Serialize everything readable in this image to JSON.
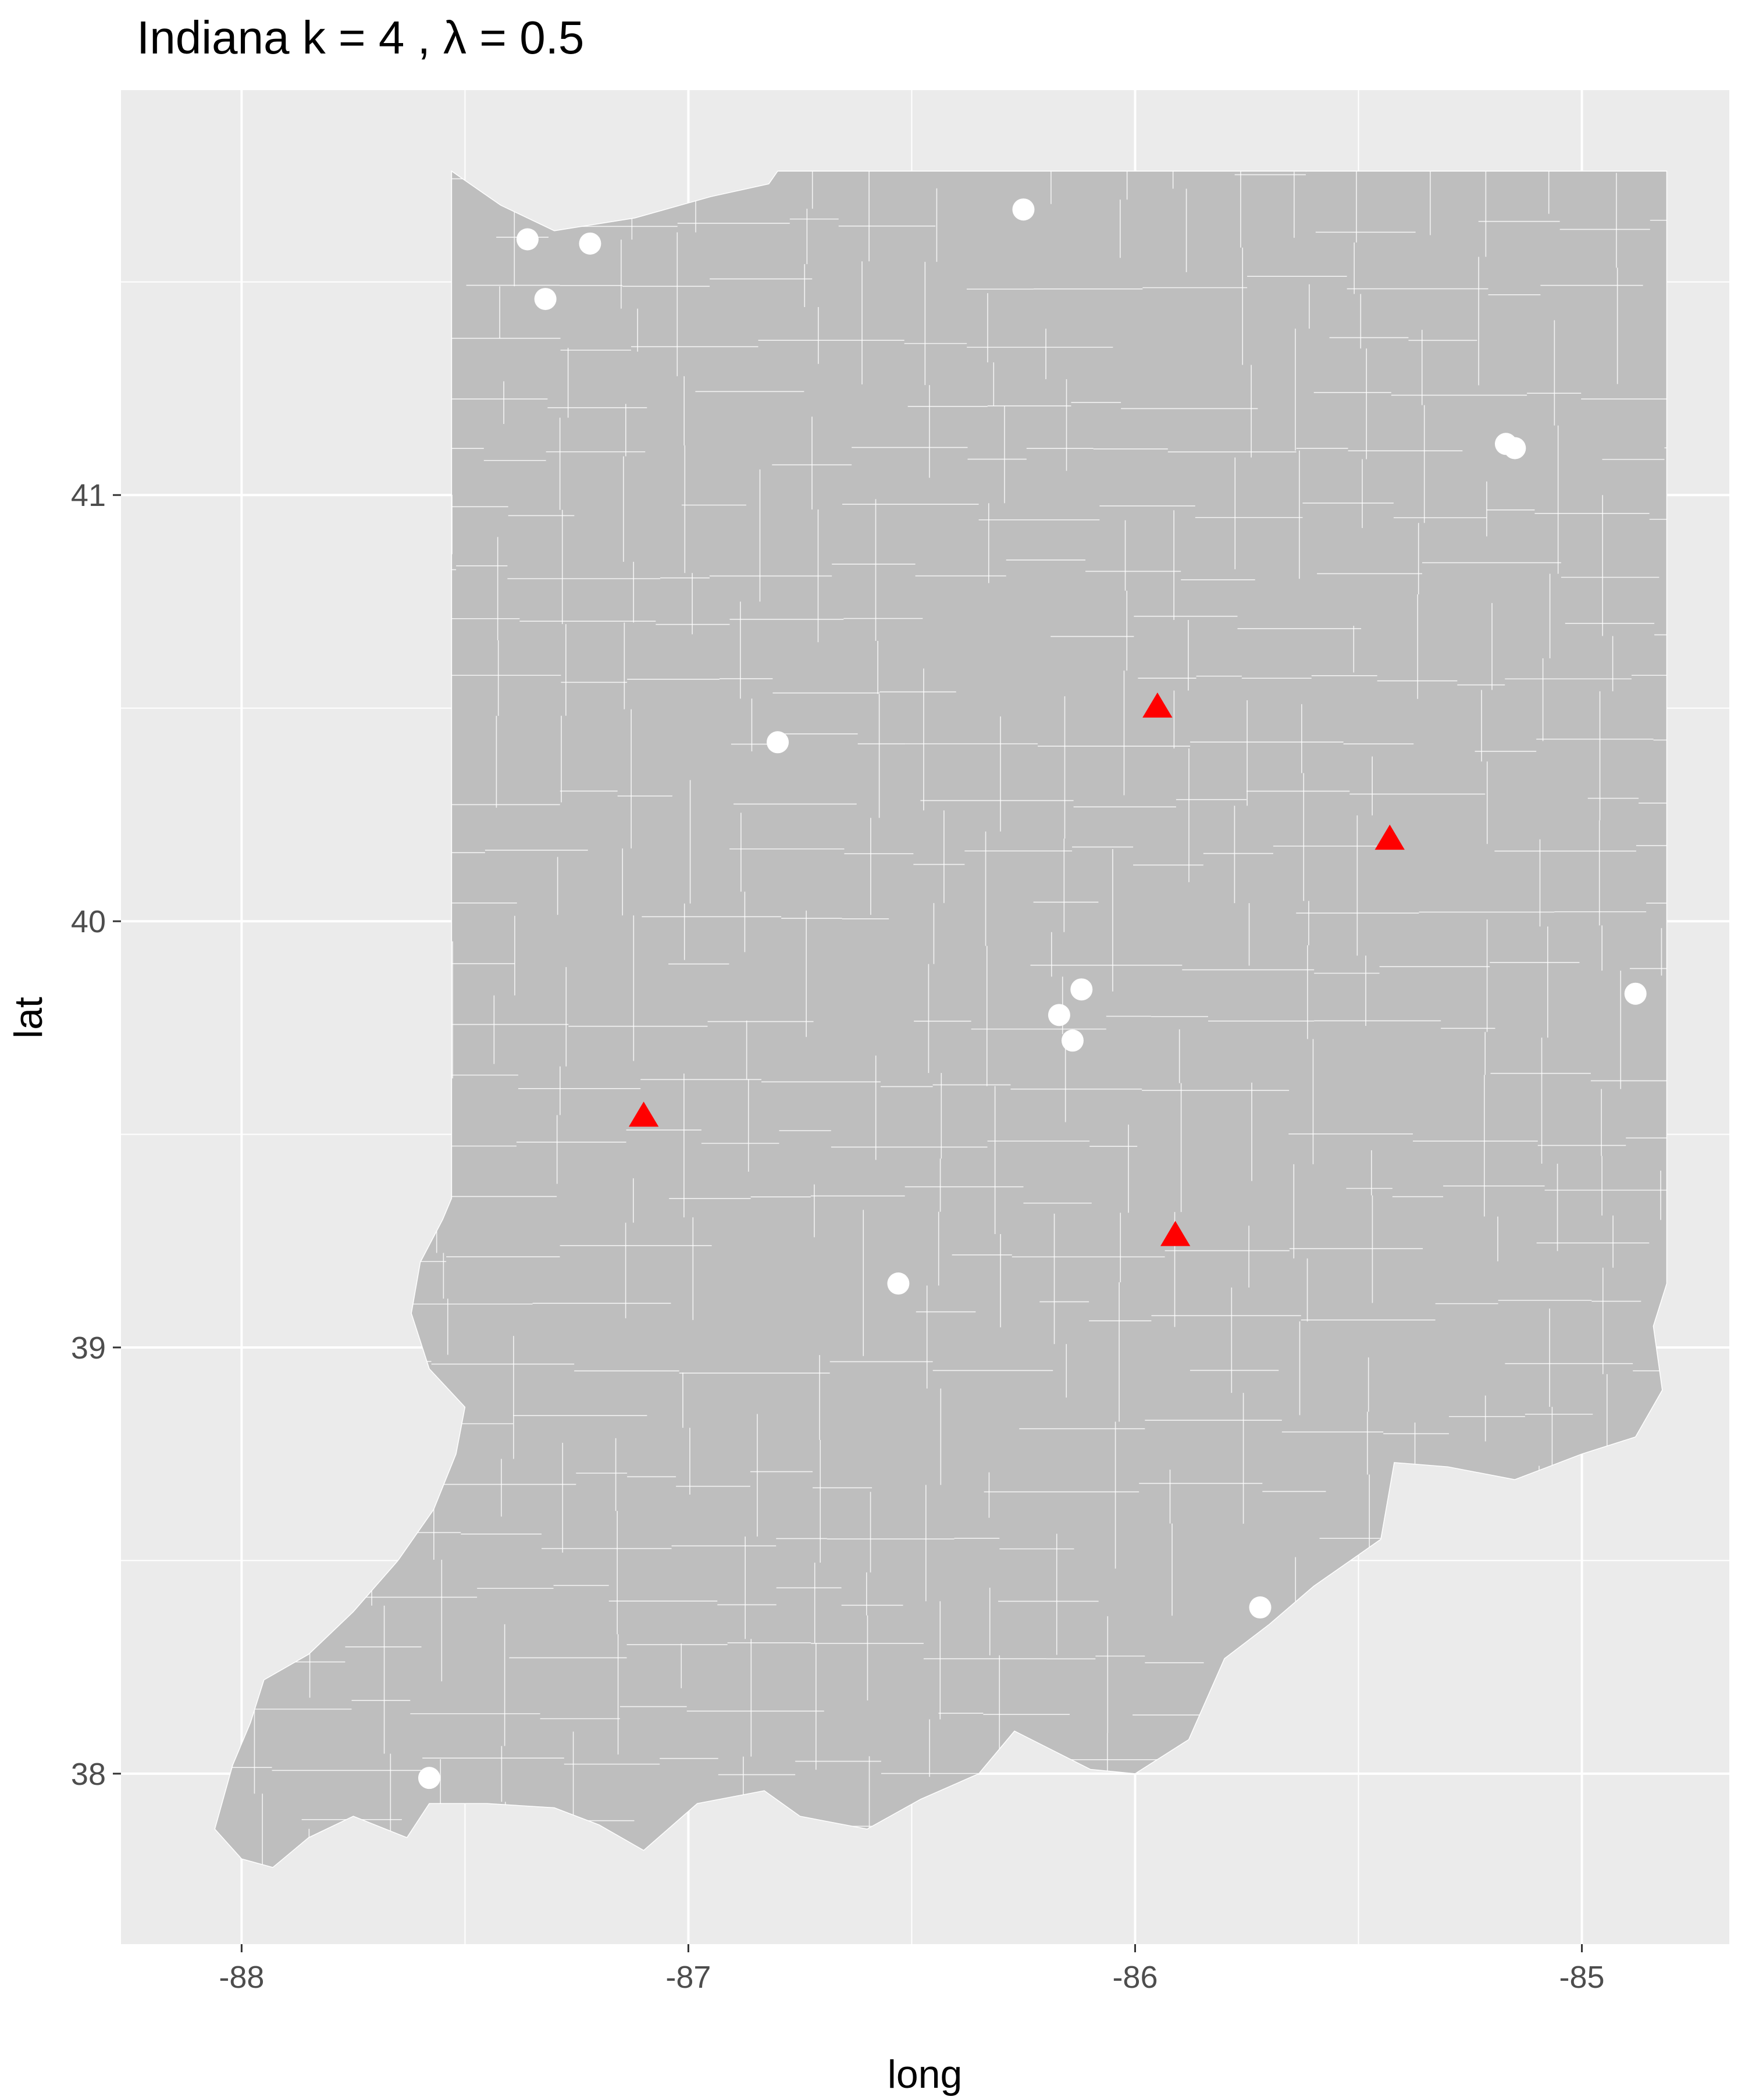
{
  "chart_data": {
    "type": "scatter",
    "title": "Indiana  k =  4 ,  λ  =  0.5",
    "xlabel": "long",
    "ylabel": "lat",
    "xlim": [
      -88.27,
      -84.67
    ],
    "ylim": [
      37.6,
      41.95
    ],
    "x_ticks": [
      {
        "value": -88,
        "label": "-88"
      },
      {
        "value": -87,
        "label": "-87"
      },
      {
        "value": -86,
        "label": "-86"
      },
      {
        "value": -85,
        "label": "-85"
      }
    ],
    "y_ticks": [
      {
        "value": 38,
        "label": "38"
      },
      {
        "value": 39,
        "label": "39"
      },
      {
        "value": 40,
        "label": "40"
      },
      {
        "value": 41,
        "label": "41"
      }
    ],
    "grid": true,
    "colors": {
      "panel": "#EBEBEB",
      "grid": "#FFFFFF",
      "state_fill": "#BEBEBE",
      "boundary": "#FFFFFF",
      "point_white": "#FFFFFF",
      "point_red": "#FF0000"
    },
    "series": [
      {
        "marker": "circle",
        "color": "#FFFFFF",
        "points": [
          {
            "x": -87.36,
            "y": 41.6
          },
          {
            "x": -87.22,
            "y": 41.59
          },
          {
            "x": -87.32,
            "y": 41.46
          },
          {
            "x": -86.25,
            "y": 41.67
          },
          {
            "x": -85.17,
            "y": 41.12
          },
          {
            "x": -85.15,
            "y": 41.11
          },
          {
            "x": -86.8,
            "y": 40.42
          },
          {
            "x": -86.12,
            "y": 39.84
          },
          {
            "x": -86.17,
            "y": 39.78
          },
          {
            "x": -86.14,
            "y": 39.72
          },
          {
            "x": -84.88,
            "y": 39.83
          },
          {
            "x": -86.53,
            "y": 39.15
          },
          {
            "x": -85.72,
            "y": 38.39
          },
          {
            "x": -87.58,
            "y": 37.99
          }
        ]
      },
      {
        "marker": "triangle",
        "color": "#FF0000",
        "points": [
          {
            "x": -85.95,
            "y": 40.5
          },
          {
            "x": -85.43,
            "y": 40.19
          },
          {
            "x": -87.1,
            "y": 39.54
          },
          {
            "x": -85.91,
            "y": 39.26
          }
        ]
      }
    ],
    "state_outline": [
      [
        -87.53,
        41.76
      ],
      [
        -87.42,
        41.68
      ],
      [
        -87.3,
        41.62
      ],
      [
        -87.12,
        41.65
      ],
      [
        -86.95,
        41.7
      ],
      [
        -86.82,
        41.73
      ],
      [
        -86.8,
        41.76
      ],
      [
        -84.81,
        41.76
      ],
      [
        -84.81,
        39.15
      ],
      [
        -84.84,
        39.05
      ],
      [
        -84.82,
        38.9
      ],
      [
        -84.88,
        38.79
      ],
      [
        -85.0,
        38.75
      ],
      [
        -85.15,
        38.69
      ],
      [
        -85.3,
        38.72
      ],
      [
        -85.42,
        38.73
      ],
      [
        -85.45,
        38.55
      ],
      [
        -85.6,
        38.44
      ],
      [
        -85.7,
        38.35
      ],
      [
        -85.8,
        38.27
      ],
      [
        -85.88,
        38.08
      ],
      [
        -86.0,
        38.0
      ],
      [
        -86.1,
        38.01
      ],
      [
        -86.27,
        38.1
      ],
      [
        -86.35,
        38.0
      ],
      [
        -86.48,
        37.94
      ],
      [
        -86.6,
        37.87
      ],
      [
        -86.75,
        37.9
      ],
      [
        -86.83,
        37.96
      ],
      [
        -86.98,
        37.93
      ],
      [
        -87.1,
        37.82
      ],
      [
        -87.2,
        37.88
      ],
      [
        -87.3,
        37.92
      ],
      [
        -87.45,
        37.93
      ],
      [
        -87.58,
        37.93
      ],
      [
        -87.63,
        37.85
      ],
      [
        -87.75,
        37.9
      ],
      [
        -87.85,
        37.85
      ],
      [
        -87.93,
        37.78
      ],
      [
        -88.0,
        37.8
      ],
      [
        -88.06,
        37.87
      ],
      [
        -88.02,
        38.02
      ],
      [
        -87.98,
        38.12
      ],
      [
        -87.95,
        38.22
      ],
      [
        -87.85,
        38.28
      ],
      [
        -87.75,
        38.38
      ],
      [
        -87.65,
        38.5
      ],
      [
        -87.57,
        38.62
      ],
      [
        -87.52,
        38.75
      ],
      [
        -87.5,
        38.86
      ],
      [
        -87.58,
        38.95
      ],
      [
        -87.62,
        39.08
      ],
      [
        -87.6,
        39.2
      ],
      [
        -87.55,
        39.3
      ],
      [
        -87.53,
        39.35
      ],
      [
        -87.53,
        41.76
      ]
    ]
  }
}
